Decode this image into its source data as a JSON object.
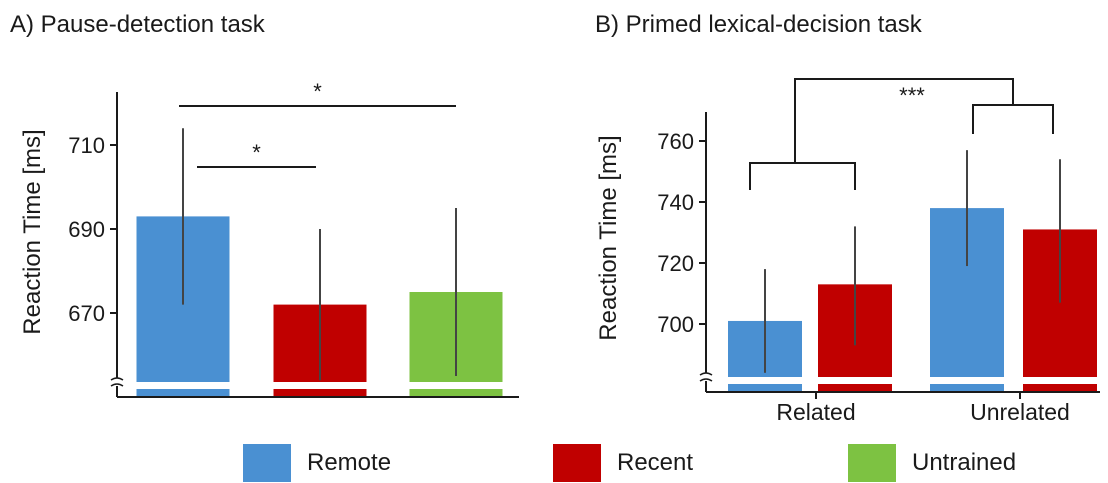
{
  "colors": {
    "Remote": "#4a90d2",
    "Recent": "#c00000",
    "Untrained": "#7dc242",
    "axis": "#1a1a1a",
    "error": "#444444"
  },
  "legend": [
    {
      "key": "Remote",
      "label": "Remote"
    },
    {
      "key": "Recent",
      "label": "Recent"
    },
    {
      "key": "Untrained",
      "label": "Untrained"
    }
  ],
  "chart_data": [
    {
      "panel": "A",
      "type": "bar",
      "title": "A) Pause-detection task",
      "ylabel": "Reaction Time [ms]",
      "xlabel": "",
      "categories": [
        "Remote",
        "Recent",
        "Untrained"
      ],
      "values": [
        693,
        672,
        675
      ],
      "error_low": [
        672,
        654,
        655
      ],
      "error_high": [
        714,
        690,
        695
      ],
      "yticks": [
        "670",
        "690",
        "710"
      ],
      "ytick_values": [
        670,
        690,
        710
      ],
      "ylim": [
        655,
        720
      ],
      "axis_break": true,
      "significance": [
        {
          "from": 0,
          "to": 1,
          "label": "*"
        },
        {
          "from": 0,
          "to": 2,
          "label": "*"
        }
      ]
    },
    {
      "panel": "B",
      "type": "bar",
      "title": "B) Primed lexical-decision task",
      "ylabel": "Reaction Time [ms]",
      "xlabel": "",
      "categories": [
        "Related",
        "Unrelated"
      ],
      "series": [
        {
          "name": "Remote",
          "values": [
            701,
            738
          ],
          "error_low": [
            684,
            719
          ],
          "error_high": [
            718,
            757
          ]
        },
        {
          "name": "Recent",
          "values": [
            713,
            731
          ],
          "error_low": [
            693,
            707
          ],
          "error_high": [
            732,
            754
          ]
        }
      ],
      "yticks": [
        "700",
        "720",
        "740",
        "760"
      ],
      "ytick_values": [
        700,
        720,
        740,
        760
      ],
      "ylim": [
        682,
        770
      ],
      "axis_break": true,
      "significance_label": "***"
    }
  ]
}
